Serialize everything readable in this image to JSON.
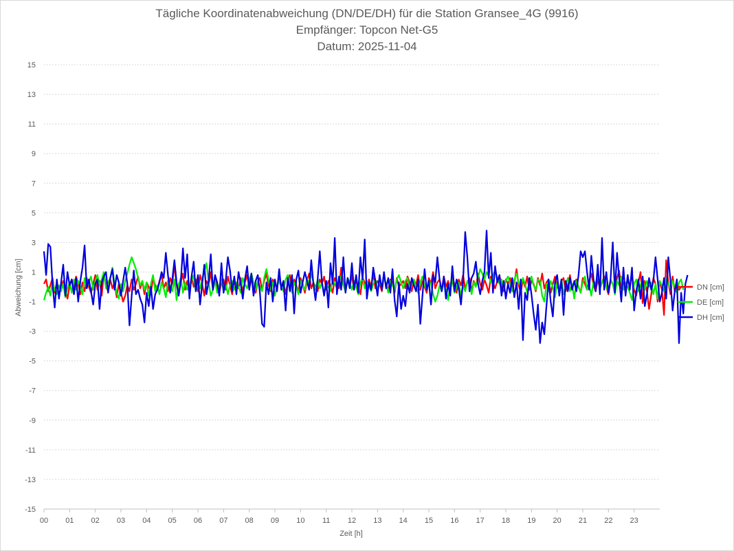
{
  "chart_data": {
    "type": "line",
    "title": "Tägliche Koordinatenabweichung (DN/DE/DH) für die Station Gransee_4G (9916)",
    "subtitle_receiver": "Empfänger: Topcon Net-G5",
    "subtitle_date": "Datum: 2025-11-04",
    "xlabel": "Zeit [h]",
    "ylabel": "Abweichung [cm]",
    "xlim": [
      0,
      24
    ],
    "ylim": [
      -15,
      15
    ],
    "y_ticks": [
      15,
      13,
      11,
      9,
      7,
      5,
      3,
      1,
      -1,
      -3,
      -5,
      -7,
      -9,
      -11,
      -13,
      -15
    ],
    "x_ticks": [
      "00",
      "01",
      "02",
      "03",
      "04",
      "05",
      "06",
      "07",
      "08",
      "09",
      "10",
      "11",
      "12",
      "13",
      "14",
      "15",
      "16",
      "17",
      "18",
      "19",
      "20",
      "21",
      "22",
      "23"
    ],
    "grid": true,
    "legend_position": "right",
    "samples_per_hour": 12,
    "series": [
      {
        "name": "DN [cm]",
        "color": "#ff0000",
        "values": [
          0.2,
          0.5,
          -0.3,
          0.1,
          0.6,
          -0.4,
          0.3,
          -0.6,
          0.0,
          0.4,
          -0.2,
          -0.8,
          0.1,
          0.5,
          -0.1,
          0.7,
          0.2,
          -0.5,
          0.3,
          -0.3,
          0.6,
          0.0,
          -0.4,
          0.2,
          0.8,
          -0.2,
          0.4,
          -0.6,
          0.9,
          0.1,
          -0.3,
          0.5,
          -0.1,
          0.3,
          -0.7,
          0.2,
          -0.4,
          -1.0,
          -0.6,
          0.1,
          -0.3,
          0.5,
          -0.2,
          0.2,
          0.7,
          -0.1,
          0.4,
          -0.5,
          0.3,
          0.0,
          -0.4,
          0.6,
          0.1,
          -0.2,
          0.4,
          0.8,
          -0.1,
          0.3,
          -0.3,
          0.6,
          0.2,
          1.5,
          0.1,
          -0.5,
          0.3,
          0.9,
          -0.2,
          0.4,
          -0.4,
          0.7,
          0.0,
          0.5,
          -0.3,
          0.8,
          0.2,
          -0.6,
          0.4,
          0.1,
          1.0,
          -0.2,
          0.6,
          0.0,
          -0.4,
          0.3,
          0.5,
          -0.2,
          0.7,
          0.1,
          -0.5,
          0.4,
          0.2,
          -0.1,
          0.6,
          -0.3,
          0.3,
          0.8,
          -0.1,
          0.5,
          0.0,
          -0.4,
          0.3,
          0.6,
          -0.2,
          0.4,
          0.9,
          0.1,
          -0.3,
          0.5,
          0.2,
          -0.1,
          0.7,
          0.0,
          0.4,
          -0.5,
          0.3,
          0.8,
          -0.2,
          0.5,
          0.1,
          -0.3,
          0.6,
          0.2,
          -0.4,
          0.4,
          0.9,
          -0.1,
          0.3,
          0.0,
          -0.3,
          0.5,
          0.2,
          0.7,
          -0.2,
          0.4,
          0.1,
          -0.4,
          0.6,
          0.3,
          -0.1,
          1.3,
          0.2,
          -0.3,
          0.5,
          0.0,
          0.8,
          -0.2,
          0.4,
          0.1,
          -0.5,
          0.6,
          0.3,
          -0.2,
          0.5,
          0.0,
          0.9,
          -0.1,
          0.4,
          0.2,
          -0.3,
          0.7,
          0.1,
          -0.2,
          0.5,
          0.3,
          -0.4,
          0.6,
          0.0,
          0.2,
          0.4,
          -0.1,
          0.7,
          0.3,
          -0.3,
          0.5,
          0.1,
          0.8,
          -0.2,
          0.4,
          0.0,
          -0.4,
          0.6,
          0.2,
          1.0,
          -0.1,
          0.3,
          0.5,
          -0.3,
          0.7,
          0.0,
          0.4,
          -0.2,
          0.6,
          0.2,
          -0.4,
          0.5,
          0.1,
          0.8,
          -0.1,
          0.3,
          0.6,
          -0.3,
          0.4,
          0.0,
          0.9,
          0.2,
          -0.2,
          0.5,
          0.1,
          -0.4,
          0.7,
          0.3,
          -0.1,
          0.4,
          0.8,
          0.0,
          -0.3,
          0.5,
          0.2,
          0.6,
          -0.2,
          0.3,
          1.2,
          0.1,
          -0.4,
          0.5,
          0.0,
          0.7,
          -0.2,
          0.4,
          0.2,
          -0.3,
          0.6,
          0.1,
          0.9,
          -0.1,
          0.3,
          0.5,
          -0.4,
          0.2,
          0.7,
          0.0,
          -0.2,
          0.4,
          0.6,
          -0.3,
          0.1,
          0.8,
          -0.1,
          0.3,
          0.5,
          0.0,
          -0.4,
          0.6,
          0.2,
          -0.2,
          0.4,
          0.9,
          0.1,
          -0.3,
          0.5,
          -0.1,
          0.3,
          0.7,
          0.0,
          -0.5,
          0.4,
          0.2,
          -0.2,
          0.6,
          1.1,
          -0.1,
          0.3,
          -0.4,
          0.5,
          0.0,
          0.8,
          -0.2,
          -0.6,
          0.3,
          1.0,
          -1.1,
          0.4,
          -0.3,
          -1.5,
          -0.5,
          0.6,
          0.2,
          -1.0,
          0.4,
          -0.2,
          -1.9,
          1.8,
          0.3,
          -0.5,
          0.7,
          -0.3,
          0.1,
          -0.2,
          0.0
        ]
      },
      {
        "name": "DE [cm]",
        "color": "#00ee00",
        "values": [
          -0.9,
          -0.4,
          0.0,
          -0.6,
          0.3,
          -0.2,
          -0.5,
          0.1,
          -0.3,
          0.2,
          -0.7,
          -0.1,
          0.3,
          -0.4,
          0.5,
          -0.2,
          0.4,
          0.0,
          -0.5,
          0.6,
          -0.1,
          0.3,
          0.7,
          -0.2,
          0.4,
          0.8,
          0.1,
          0.5,
          1.0,
          -0.1,
          0.3,
          0.6,
          1.3,
          0.2,
          -0.4,
          -0.8,
          0.2,
          -0.3,
          0.4,
          0.9,
          1.5,
          2.0,
          1.6,
          1.2,
          0.6,
          0.1,
          0.4,
          -0.2,
          0.3,
          -0.6,
          0.2,
          0.8,
          -0.3,
          0.1,
          -0.5,
          0.3,
          -0.1,
          -0.7,
          0.4,
          0.0,
          -0.3,
          0.5,
          -0.9,
          0.2,
          0.6,
          -0.4,
          0.3,
          -0.2,
          0.1,
          0.4,
          0.8,
          -0.3,
          0.2,
          -0.1,
          0.6,
          1.0,
          1.6,
          0.3,
          -0.6,
          -0.2,
          0.4,
          -0.4,
          0.1,
          0.5,
          -0.3,
          0.2,
          -0.5,
          0.1,
          0.4,
          -0.2,
          0.3,
          0.0,
          -0.4,
          0.6,
          0.2,
          -0.1,
          0.5,
          0.9,
          0.3,
          -0.2,
          0.4,
          0.0,
          -0.3,
          0.6,
          1.2,
          0.5,
          -0.2,
          0.3,
          -0.6,
          0.1,
          0.4,
          0.0,
          -0.3,
          0.5,
          0.8,
          0.2,
          -0.4,
          0.3,
          0.0,
          -0.5,
          0.4,
          0.1,
          -0.2,
          0.6,
          0.2,
          0.9,
          0.3,
          -0.2,
          0.5,
          -0.1,
          0.3,
          -0.4,
          0.2,
          0.0,
          -0.3,
          0.5,
          0.2,
          -0.1,
          0.4,
          0.7,
          0.1,
          -0.3,
          0.6,
          0.3,
          -0.2,
          0.4,
          0.0,
          -0.5,
          0.3,
          0.6,
          -0.1,
          0.4,
          0.1,
          -0.3,
          0.2,
          0.5,
          -0.2,
          0.3,
          0.0,
          0.6,
          0.2,
          -0.4,
          0.4,
          0.1,
          -0.2,
          0.5,
          0.8,
          0.3,
          -0.1,
          0.4,
          0.6,
          -0.3,
          0.2,
          0.5,
          0.0,
          -0.4,
          0.3,
          0.7,
          0.1,
          -0.2,
          0.4,
          0.2,
          -0.5,
          -1.0,
          -0.6,
          0.1,
          -0.3,
          0.3,
          -0.2,
          -0.9,
          0.2,
          0.5,
          -0.4,
          0.0,
          0.3,
          -0.6,
          0.1,
          -0.3,
          0.4,
          0.2,
          -0.5,
          0.3,
          0.0,
          0.6,
          1.2,
          0.9,
          0.5,
          1.0,
          0.7,
          0.3,
          0.8,
          1.1,
          0.6,
          0.2,
          0.5,
          -0.1,
          0.4,
          0.7,
          0.2,
          -0.3,
          0.5,
          0.9,
          0.3,
          0.0,
          0.6,
          0.2,
          -0.4,
          0.3,
          0.7,
          0.1,
          -0.2,
          0.5,
          0.4,
          -0.6,
          -1.0,
          0.2,
          -0.3,
          0.4,
          0.0,
          -0.7,
          0.3,
          -0.2,
          0.5,
          -0.5,
          0.1,
          0.6,
          -0.3,
          0.2,
          -0.8,
          0.4,
          0.0,
          -0.4,
          0.3,
          0.7,
          -0.2,
          0.1,
          -0.6,
          0.4,
          0.2,
          0.9,
          -0.1,
          0.3,
          0.6,
          0.0,
          -0.3,
          0.5,
          0.2,
          -0.5,
          0.4,
          0.1,
          0.7,
          -0.2,
          0.3,
          0.0,
          -0.4,
          -0.9,
          0.2,
          0.5,
          -0.3,
          0.1,
          0.6,
          -0.2,
          0.4,
          0.0,
          0.3,
          -0.5,
          0.2,
          -0.8,
          0.4,
          0.1,
          -0.3,
          0.6,
          0.2,
          -0.1,
          0.4,
          0.0,
          -0.4,
          0.3,
          0.5,
          -0.2
        ]
      },
      {
        "name": "DH [cm]",
        "color": "#0000dd",
        "values": [
          2.4,
          0.8,
          2.9,
          2.7,
          0.2,
          -1.4,
          0.5,
          -0.8,
          0.3,
          1.5,
          -0.6,
          1.0,
          0.1,
          0.5,
          -0.5,
          0.6,
          -1.0,
          0.4,
          1.3,
          2.8,
          -0.1,
          0.5,
          -0.3,
          -1.2,
          0.2,
          0.5,
          -1.5,
          0.3,
          0.7,
          1.0,
          -0.4,
          0.6,
          1.2,
          -0.2,
          0.8,
          0.3,
          -0.6,
          0.4,
          1.3,
          0.2,
          -2.6,
          -0.6,
          1.1,
          -0.5,
          -0.2,
          -0.8,
          -1.2,
          -2.4,
          -0.4,
          -1.3,
          0.0,
          -1.5,
          -0.5,
          -0.2,
          0.3,
          1.0,
          0.6,
          2.3,
          0.8,
          -0.4,
          0.5,
          1.8,
          0.3,
          -0.6,
          0.4,
          2.6,
          0.6,
          2.2,
          -0.8,
          0.7,
          1.7,
          -0.3,
          0.8,
          -1.2,
          0.2,
          1.5,
          -0.5,
          0.4,
          2.2,
          -0.2,
          0.8,
          0.3,
          -0.6,
          1.6,
          -0.4,
          0.4,
          2.0,
          1.1,
          -0.3,
          0.7,
          -0.5,
          1.0,
          0.2,
          -0.8,
          0.5,
          1.4,
          -0.2,
          0.9,
          -0.6,
          0.4,
          0.8,
          -0.4,
          -2.5,
          -2.7,
          0.3,
          -0.5,
          0.6,
          -1.0,
          0.5,
          -0.3,
          1.2,
          -0.2,
          0.4,
          -1.6,
          0.6,
          -0.3,
          0.8,
          -1.8,
          0.5,
          1.1,
          -0.4,
          0.3,
          1.0,
          0.4,
          -0.2,
          1.8,
          0.2,
          -0.9,
          0.5,
          2.4,
          0.3,
          -0.6,
          0.4,
          -1.4,
          1.6,
          0.2,
          3.3,
          -0.5,
          0.7,
          -0.2,
          2.0,
          -0.4,
          0.6,
          -0.1,
          1.6,
          -0.2,
          0.8,
          -0.4,
          2.0,
          0.5,
          3.2,
          -0.8,
          0.3,
          -0.2,
          1.3,
          0.4,
          -0.6,
          0.8,
          -0.2,
          1.0,
          -0.1,
          0.6,
          -0.4,
          1.2,
          -0.9,
          -2.0,
          0.3,
          -1.5,
          -0.6,
          -1.3,
          0.2,
          -0.4,
          0.6,
          0.1,
          -0.3,
          0.5,
          -2.5,
          -0.6,
          1.2,
          -0.2,
          0.4,
          -1.2,
          0.8,
          0.3,
          2.0,
          0.5,
          -0.3,
          0.7,
          -0.8,
          0.2,
          -0.6,
          1.4,
          -0.3,
          0.5,
          -0.1,
          -1.2,
          0.4,
          3.7,
          2.0,
          -0.3,
          0.6,
          0.9,
          1.7,
          0.2,
          -0.5,
          0.4,
          1.0,
          3.8,
          0.6,
          2.3,
          -0.4,
          1.4,
          0.3,
          0.8,
          -0.6,
          0.4,
          -0.8,
          0.2,
          -0.4,
          0.6,
          -0.7,
          0.3,
          -1.5,
          0.5,
          -3.6,
          -0.4,
          -0.9,
          0.6,
          -0.5,
          -1.8,
          -2.9,
          -1.2,
          -3.8,
          -2.4,
          -3.2,
          -1.3,
          0.5,
          -1.0,
          -2.0,
          0.3,
          0.8,
          -0.6,
          0.5,
          -1.9,
          0.4,
          -0.3,
          0.6,
          -0.2,
          0.4,
          -0.3,
          0.8,
          2.4,
          2.0,
          2.4,
          1.0,
          -0.2,
          2.1,
          0.5,
          -0.3,
          1.5,
          -0.5,
          3.3,
          -0.2,
          1.0,
          -0.4,
          0.5,
          3.0,
          -0.4,
          2.3,
          0.6,
          -1.0,
          1.3,
          -0.6,
          0.8,
          -0.2,
          1.3,
          -1.6,
          -0.3,
          0.5,
          -0.8,
          0.7,
          -1.3,
          -0.5,
          0.6,
          -0.2,
          0.4,
          2.0,
          0.5,
          -1.0,
          -0.4,
          0.6,
          -0.8,
          2.0,
          0.4,
          -1.6,
          -0.3,
          0.5,
          -3.8,
          -0.4,
          -1.8,
          0.2,
          0.8
        ]
      }
    ]
  }
}
